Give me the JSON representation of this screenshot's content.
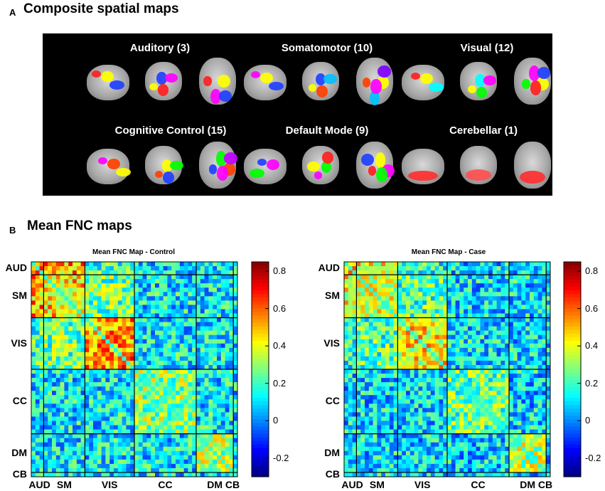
{
  "panelA": {
    "letter": "A",
    "title": "Composite spatial maps",
    "networks": [
      {
        "label": "Auditory (3)"
      },
      {
        "label": "Somatomotor (10)"
      },
      {
        "label": "Visual (12)"
      },
      {
        "label": "Cognitive Control (15)"
      },
      {
        "label": "Default Mode (9)"
      },
      {
        "label": "Cerebellar (1)"
      }
    ]
  },
  "panelB": {
    "letter": "B",
    "title": "Mean FNC maps"
  },
  "colors": {
    "panelA_background": "#000000",
    "colormap": [
      "#00008f",
      "#0000ff",
      "#0080ff",
      "#00ffff",
      "#80ff80",
      "#ffff00",
      "#ff8000",
      "#ff0000",
      "#800000"
    ]
  },
  "chart_data": [
    {
      "type": "heatmap",
      "title": "Mean FNC Map - Control",
      "x_groups": [
        {
          "label": "AUD",
          "size": 3
        },
        {
          "label": "SM",
          "size": 10
        },
        {
          "label": "VIS",
          "size": 12
        },
        {
          "label": "CC",
          "size": 15
        },
        {
          "label": "DM",
          "size": 9
        },
        {
          "label": "CB",
          "size": 1
        }
      ],
      "y_groups": [
        "AUD",
        "SM",
        "VIS",
        "CC",
        "DM",
        "CB"
      ],
      "colorbar": {
        "min": -0.3,
        "max": 0.85,
        "ticks": [
          "0.8",
          "0.6",
          "0.4",
          "0.2",
          "0",
          "-0.2"
        ]
      },
      "within_group_mean": {
        "AUD": 0.55,
        "SM": 0.45,
        "VIS": 0.55,
        "CC": 0.28,
        "DM": 0.3,
        "CB": 0.3
      },
      "between_group_mean": {
        "AUD-SM": 0.5,
        "SM-VIS": 0.25,
        "AUD-VIS": 0.2,
        "other": 0.12
      }
    },
    {
      "type": "heatmap",
      "title": "Mean FNC Map - Case",
      "x_groups": [
        {
          "label": "AUD",
          "size": 3
        },
        {
          "label": "SM",
          "size": 10
        },
        {
          "label": "VIS",
          "size": 12
        },
        {
          "label": "CC",
          "size": 15
        },
        {
          "label": "DM",
          "size": 9
        },
        {
          "label": "CB",
          "size": 1
        }
      ],
      "y_groups": [
        "AUD",
        "SM",
        "VIS",
        "CC",
        "DM",
        "CB"
      ],
      "colorbar": {
        "min": -0.3,
        "max": 0.85,
        "ticks": [
          "0.8",
          "0.6",
          "0.4",
          "0.2",
          "0",
          "-0.2"
        ]
      },
      "within_group_mean": {
        "AUD": 0.45,
        "SM": 0.38,
        "VIS": 0.42,
        "CC": 0.25,
        "DM": 0.32,
        "CB": 0.3
      },
      "between_group_mean": {
        "AUD-SM": 0.4,
        "SM-VIS": 0.22,
        "AUD-VIS": 0.18,
        "other": 0.1
      }
    }
  ]
}
